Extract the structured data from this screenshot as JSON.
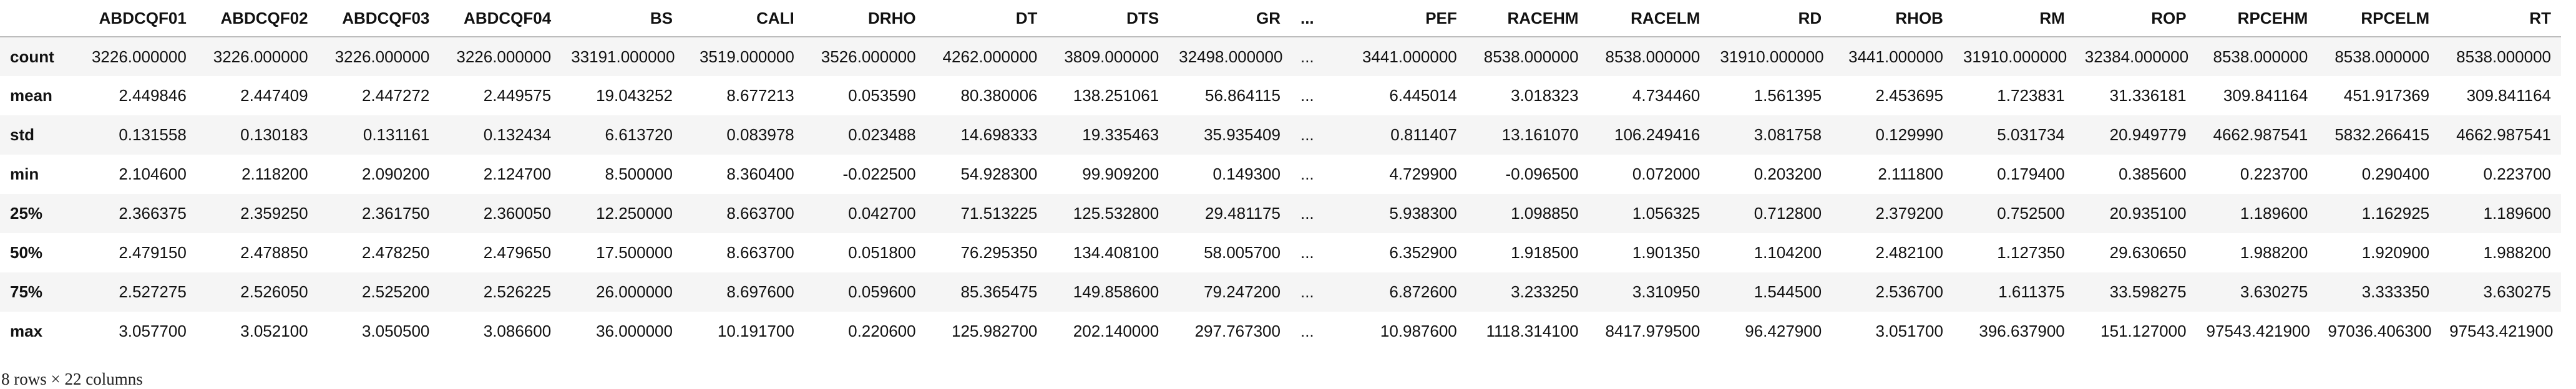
{
  "table": {
    "columns": [
      "ABDCQF01",
      "ABDCQF02",
      "ABDCQF03",
      "ABDCQF04",
      "BS",
      "CALI",
      "DRHO",
      "DT",
      "DTS",
      "GR",
      "...",
      "PEF",
      "RACEHM",
      "RACELM",
      "RD",
      "RHOB",
      "RM",
      "ROP",
      "RPCEHM",
      "RPCELM",
      "RT"
    ],
    "rows": [
      {
        "label": "count",
        "values": [
          "3226.000000",
          "3226.000000",
          "3226.000000",
          "3226.000000",
          "33191.000000",
          "3519.000000",
          "3526.000000",
          "4262.000000",
          "3809.000000",
          "32498.000000",
          "...",
          "3441.000000",
          "8538.000000",
          "8538.000000",
          "31910.000000",
          "3441.000000",
          "31910.000000",
          "32384.000000",
          "8538.000000",
          "8538.000000",
          "8538.000000"
        ]
      },
      {
        "label": "mean",
        "values": [
          "2.449846",
          "2.447409",
          "2.447272",
          "2.449575",
          "19.043252",
          "8.677213",
          "0.053590",
          "80.380006",
          "138.251061",
          "56.864115",
          "...",
          "6.445014",
          "3.018323",
          "4.734460",
          "1.561395",
          "2.453695",
          "1.723831",
          "31.336181",
          "309.841164",
          "451.917369",
          "309.841164"
        ]
      },
      {
        "label": "std",
        "values": [
          "0.131558",
          "0.130183",
          "0.131161",
          "0.132434",
          "6.613720",
          "0.083978",
          "0.023488",
          "14.698333",
          "19.335463",
          "35.935409",
          "...",
          "0.811407",
          "13.161070",
          "106.249416",
          "3.081758",
          "0.129990",
          "5.031734",
          "20.949779",
          "4662.987541",
          "5832.266415",
          "4662.987541"
        ]
      },
      {
        "label": "min",
        "values": [
          "2.104600",
          "2.118200",
          "2.090200",
          "2.124700",
          "8.500000",
          "8.360400",
          "-0.022500",
          "54.928300",
          "99.909200",
          "0.149300",
          "...",
          "4.729900",
          "-0.096500",
          "0.072000",
          "0.203200",
          "2.111800",
          "0.179400",
          "0.385600",
          "0.223700",
          "0.290400",
          "0.223700"
        ]
      },
      {
        "label": "25%",
        "values": [
          "2.366375",
          "2.359250",
          "2.361750",
          "2.360050",
          "12.250000",
          "8.663700",
          "0.042700",
          "71.513225",
          "125.532800",
          "29.481175",
          "...",
          "5.938300",
          "1.098850",
          "1.056325",
          "0.712800",
          "2.379200",
          "0.752500",
          "20.935100",
          "1.189600",
          "1.162925",
          "1.189600"
        ]
      },
      {
        "label": "50%",
        "values": [
          "2.479150",
          "2.478850",
          "2.478250",
          "2.479650",
          "17.500000",
          "8.663700",
          "0.051800",
          "76.295350",
          "134.408100",
          "58.005700",
          "...",
          "6.352900",
          "1.918500",
          "1.901350",
          "1.104200",
          "2.482100",
          "1.127350",
          "29.630650",
          "1.988200",
          "1.920900",
          "1.988200"
        ]
      },
      {
        "label": "75%",
        "values": [
          "2.527275",
          "2.526050",
          "2.525200",
          "2.526225",
          "26.000000",
          "8.697600",
          "0.059600",
          "85.365475",
          "149.858600",
          "79.247200",
          "...",
          "6.872600",
          "3.233250",
          "3.310950",
          "1.544500",
          "2.536700",
          "1.611375",
          "33.598275",
          "3.630275",
          "3.333350",
          "3.630275"
        ]
      },
      {
        "label": "max",
        "values": [
          "3.057700",
          "3.052100",
          "3.050500",
          "3.086600",
          "36.000000",
          "10.191700",
          "0.220600",
          "125.982700",
          "202.140000",
          "297.767300",
          "...",
          "10.987600",
          "1118.314100",
          "8417.979500",
          "96.427900",
          "3.051700",
          "396.637900",
          "151.127000",
          "97543.421900",
          "97036.406300",
          "97543.421900"
        ]
      }
    ]
  },
  "shape_note": "8 rows × 22 columns"
}
